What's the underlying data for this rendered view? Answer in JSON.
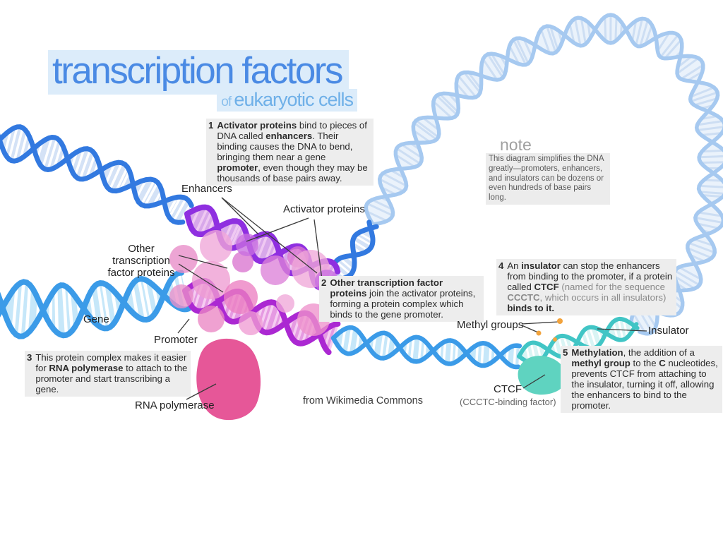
{
  "title": {
    "main": "transcription factors",
    "sub_prefix": "of ",
    "sub": "eukaryotic cells"
  },
  "note": {
    "heading": "note",
    "body": "This diagram simplifies the DNA greatly—promoters, enhancers, and insulators can be dozens or even hundreds of base pairs long."
  },
  "steps": [
    {
      "num": "1",
      "segments": [
        {
          "t": "Activator proteins",
          "b": true
        },
        {
          "t": " bind to pieces of DNA called "
        },
        {
          "t": "enhancers",
          "b": true
        },
        {
          "t": ". Their binding causes the DNA to bend, bringing them near a gene "
        },
        {
          "t": "promoter",
          "b": true
        },
        {
          "t": ", even though they may be thousands of base pairs away."
        }
      ]
    },
    {
      "num": "2",
      "segments": [
        {
          "t": "Other transcription factor proteins",
          "b": true
        },
        {
          "t": " join the activator proteins, forming a protein complex which binds to the gene promoter."
        }
      ]
    },
    {
      "num": "3",
      "segments": [
        {
          "t": "This protein complex makes it easier for "
        },
        {
          "t": "RNA polymerase",
          "b": true
        },
        {
          "t": " to attach to the promoter and start transcribing a gene."
        }
      ]
    },
    {
      "num": "4",
      "segments": [
        {
          "t": "An "
        },
        {
          "t": "insulator",
          "b": true
        },
        {
          "t": " can stop the enhancers from binding to the promoter, if a protein called "
        },
        {
          "t": "CTCF",
          "b": true
        },
        {
          "t": " "
        },
        {
          "t": "(named for the sequence ",
          "gray": true
        },
        {
          "t": "CCCTC",
          "b": true,
          "gray": true
        },
        {
          "t": ", which occurs in all insulators) ",
          "gray": true
        },
        {
          "t": "binds to it.",
          "b": true
        }
      ]
    },
    {
      "num": "5",
      "segments": [
        {
          "t": "Methylation",
          "b": true
        },
        {
          "t": ", the addition of a "
        },
        {
          "t": "methyl group",
          "b": true
        },
        {
          "t": " to the "
        },
        {
          "t": "C",
          "b": true
        },
        {
          "t": " nucleotides, prevents CTCF from attaching to the insulator, turning it off, allowing the enhancers to bind to the promoter."
        }
      ]
    }
  ],
  "labels": {
    "gene": "Gene",
    "enhancers": "Enhancers",
    "activator_proteins": "Activator proteins",
    "other_tf": "Other transcription\nfactor proteins",
    "promoter": "Promoter",
    "rna_polymerase": "RNA polymerase",
    "methyl_groups": "Methyl groups",
    "insulator": "Insulator",
    "ctcf": "CTCF",
    "ctcf_sub": "(CCCTC-binding factor)"
  },
  "credit": "from Wikimedia Commons",
  "colors": {
    "title_blue": "#4a8ae4",
    "subtitle_blue": "#6fb0e8",
    "highlight_blue": "#dcecfa",
    "dna_blue": "#3279e0",
    "dna_blue_fill": "#d4e2f6",
    "gene_blue": "#3b9be8",
    "gene_fill": "#c6e7f9",
    "pale_blue": "#a6c9f0",
    "pale_fill": "#eaf2fb",
    "pale_rung": "#cddef3",
    "enhancer_purple": "#8f2fe0",
    "enhancer_fill": "#d8a8ea",
    "enhancer_rung": "#efc9f2",
    "promoter_purple": "#ab28d2",
    "promoter_fill": "#e59ae2",
    "promoter_rung": "#f6cdf2",
    "insulator_teal": "#41c5c5",
    "insulator_fill": "#d9f4f4",
    "rung_white": "#ffffff",
    "protein_pinks": [
      "#f0a6d8",
      "#e88cc8",
      "#da74d0",
      "#ee9cd2",
      "#e98fc9",
      "#ec7fc2",
      "#dc82d8",
      "#c86ee0",
      "#ea86c4",
      "#f09cd3",
      "#f0a8d8",
      "#ee92cc"
    ],
    "rna_polymerase_pink": "#e65798",
    "ctcf_teal": "#5fd3c0",
    "methyl_orange": "#f2a33c",
    "pointer_dark": "#3a3a3a"
  }
}
